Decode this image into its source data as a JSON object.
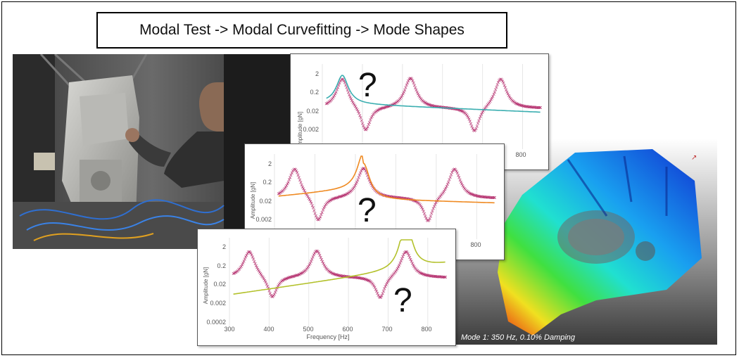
{
  "title": "Modal Test -> Modal Curvefitting -> Mode Shapes",
  "render_caption": "Mode 1: 350 Hz, 0.10% Damping",
  "question_mark": "?",
  "colors": {
    "measured": "#b5316f",
    "fit_plot1": "#3aaeb0",
    "fit_plot2": "#ef8a22",
    "fit_plot3": "#b3c12b",
    "grid": "#e6e6e6"
  },
  "plots": [
    {
      "y_axis_label": "Amplitude [gN]",
      "y_ticks": [
        "2",
        "0.2",
        "0.02",
        "0.002"
      ],
      "x_ticks": [
        "800"
      ],
      "fit_mode_hz": 350
    },
    {
      "y_axis_label": "Amplitude [gN]",
      "y_ticks": [
        "2",
        "0.2",
        "0.02",
        "0.002"
      ],
      "x_ticks": [
        "800"
      ],
      "fit_mode_hz": 520
    },
    {
      "y_axis_label": "Amplitude [gN]",
      "y_ticks": [
        "2",
        "0.2",
        "0.02",
        "0.002",
        "0.0002"
      ],
      "x_ticks": [
        "300",
        "400",
        "500",
        "600",
        "700",
        "800"
      ],
      "x_axis_label": "Frequency [Hz]",
      "fit_mode_hz": 745
    }
  ],
  "chart_data": {
    "type": "line",
    "xlabel": "Frequency [Hz]",
    "ylabel": "Amplitude [gN]",
    "xlim": [
      300,
      850
    ],
    "y_scale": "log",
    "ylim": [
      0.0002,
      5
    ],
    "resonance_peaks_hz": [
      350,
      520,
      745
    ],
    "antiresonances_hz": [
      408,
      680
    ],
    "series": []
  }
}
